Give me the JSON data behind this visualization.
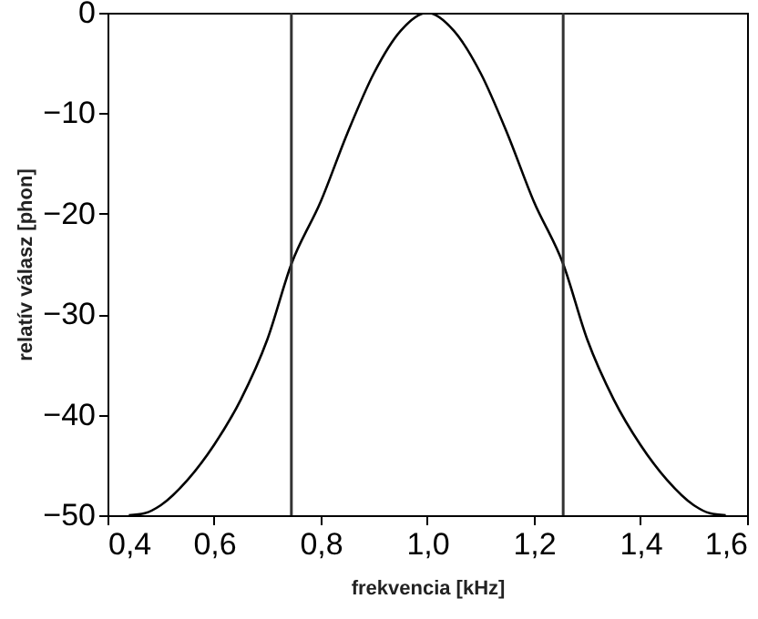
{
  "chart_data": {
    "type": "line",
    "xlabel": "frekvencia [kHz]",
    "ylabel": "relatív válasz  [phon]",
    "x": [
      0.44,
      0.47,
      0.5,
      0.55,
      0.6,
      0.65,
      0.7,
      0.745,
      0.8,
      0.85,
      0.9,
      0.95,
      1.0,
      1.05,
      1.1,
      1.15,
      1.2,
      1.255,
      1.3,
      1.35,
      1.4,
      1.45,
      1.5,
      1.53,
      1.56
    ],
    "series": [
      {
        "color": "#000000",
        "values": [
          -50,
          -49.8,
          -49,
          -46.5,
          -43,
          -38.5,
          -32.5,
          -25,
          -18.8,
          -12,
          -6,
          -1.8,
          0,
          -1.8,
          -6,
          -12,
          -18.8,
          -25,
          -32.5,
          -38.5,
          -43,
          -46.5,
          -49,
          -49.8,
          -50
        ]
      }
    ],
    "xlim": [
      0.4,
      1.6
    ],
    "ylim": [
      -50,
      0
    ],
    "xticks": [
      {
        "value": 0.4,
        "label": "0,4"
      },
      {
        "value": 0.6,
        "label": "0,6"
      },
      {
        "value": 0.8,
        "label": "0,8"
      },
      {
        "value": 1.0,
        "label": "1,0"
      },
      {
        "value": 1.2,
        "label": "1,2"
      },
      {
        "value": 1.4,
        "label": "1,4"
      },
      {
        "value": 1.6,
        "label": "1,6"
      }
    ],
    "yticks": [
      {
        "value": -50,
        "label": "−50"
      },
      {
        "value": -40,
        "label": "−40"
      },
      {
        "value": -30,
        "label": "−30"
      },
      {
        "value": -20,
        "label": "−20"
      },
      {
        "value": -10,
        "label": "−10"
      },
      0
    ],
    "ref_lines": [
      {
        "axis": "x",
        "value": 0.745,
        "color": "#333333"
      },
      {
        "axis": "x",
        "value": 1.255,
        "color": "#333333"
      }
    ],
    "grid": false,
    "marker": "none",
    "line_style": "solid"
  }
}
